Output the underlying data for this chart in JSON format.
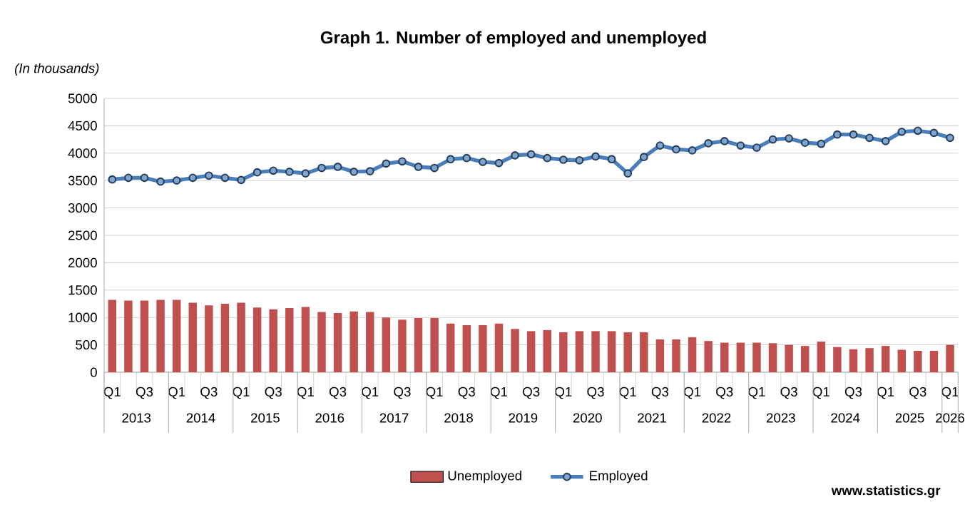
{
  "chart_data": {
    "type": "bar",
    "title": "Graph 1. Number of employed and unemployed",
    "ylabel": "(In thousands)",
    "categories": [
      "Q1",
      null,
      "Q3",
      null,
      "Q1",
      null,
      "Q3",
      null,
      "Q1",
      null,
      "Q3",
      null,
      "Q1",
      null,
      "Q3",
      null,
      "Q1",
      null,
      "Q3",
      null,
      "Q1",
      null,
      "Q3",
      null,
      "Q1",
      null,
      "Q3",
      null,
      "Q1",
      null,
      "Q3",
      null,
      "Q1",
      null,
      "Q3",
      null,
      "Q1",
      null,
      "Q3",
      null,
      "Q1",
      null,
      "Q3",
      null,
      "Q1",
      null,
      "Q3",
      null,
      "Q1",
      null,
      "Q3",
      null,
      "Q1"
    ],
    "series": [
      {
        "name": "Unemployed",
        "color": "#c0504d",
        "values": [
          1320,
          1310,
          1310,
          1320,
          1320,
          1270,
          1220,
          1250,
          1270,
          1180,
          1150,
          1170,
          1190,
          1100,
          1080,
          1110,
          1100,
          1000,
          960,
          990,
          990,
          890,
          860,
          860,
          890,
          790,
          750,
          770,
          730,
          750,
          750,
          750,
          730,
          730,
          600,
          600,
          640,
          570,
          540,
          540,
          540,
          530,
          500,
          480,
          560,
          460,
          420,
          440,
          480,
          410,
          390,
          390,
          500
        ]
      },
      {
        "name": "Employed",
        "type": "line",
        "color": "#4a7ebb",
        "marker": "circle",
        "values": [
          3520,
          3550,
          3550,
          3480,
          3500,
          3550,
          3590,
          3550,
          3510,
          3650,
          3680,
          3660,
          3630,
          3730,
          3750,
          3660,
          3670,
          3810,
          3850,
          3750,
          3730,
          3890,
          3910,
          3840,
          3820,
          3960,
          3980,
          3910,
          3880,
          3870,
          3940,
          3890,
          3630,
          3930,
          4140,
          4070,
          4050,
          4180,
          4220,
          4140,
          4100,
          4250,
          4270,
          4190,
          4170,
          4340,
          4340,
          4280,
          4220,
          4390,
          4410,
          4370,
          4280
        ]
      }
    ],
    "ylim": [
      0,
      5000
    ],
    "yticks": [
      0,
      500,
      1000,
      1500,
      2000,
      2500,
      3000,
      3500,
      4000,
      4500,
      5000
    ],
    "grid": "y",
    "legend": "bottom",
    "annotations": [
      "2013",
      "2014",
      "2015",
      "2016",
      "2017",
      "2018",
      "2019",
      "2020",
      "2021",
      "2022",
      "2023",
      "2024",
      "2025",
      "2026",
      "www.statistics.gr"
    ]
  }
}
